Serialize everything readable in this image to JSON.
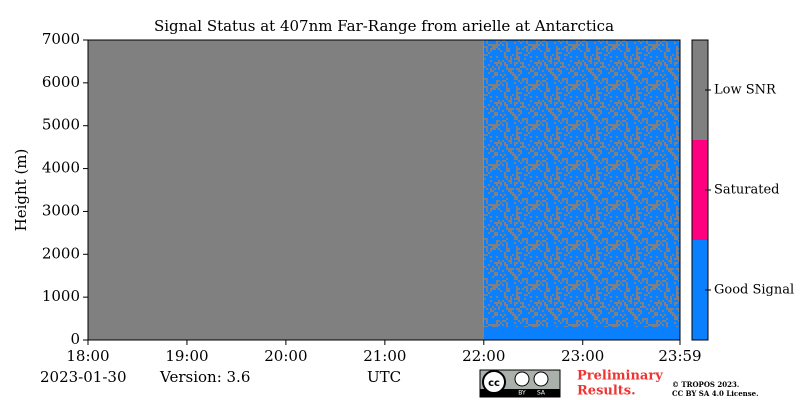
{
  "chart_data": {
    "type": "status",
    "title": "Signal Status at 407nm Far-Range from arielle at Antarctica",
    "y_label": "Height (m)",
    "x_label": "UTC",
    "date": "2023-01-30",
    "version": "Version: 3.6",
    "xlim": [
      18,
      23.983
    ],
    "xticks": [
      {
        "value": 18,
        "label": "18:00"
      },
      {
        "value": 19,
        "label": "19:00"
      },
      {
        "value": 20,
        "label": "20:00"
      },
      {
        "value": 21,
        "label": "21:00"
      },
      {
        "value": 22,
        "label": "22:00"
      },
      {
        "value": 23,
        "label": "23:00"
      },
      {
        "value": 23.983,
        "label": "23:59"
      }
    ],
    "ylim": [
      0,
      7000
    ],
    "yticks": [
      0,
      1000,
      2000,
      3000,
      4000,
      5000,
      6000,
      7000
    ],
    "classes": [
      {
        "name": "Good Signal",
        "color": "#0a80ff"
      },
      {
        "name": "Saturated",
        "color": "#ff0080"
      },
      {
        "name": "Low SNR",
        "color": "#808080"
      }
    ],
    "regions": [
      {
        "x": [
          18,
          22
        ],
        "y": [
          0,
          7000
        ],
        "classes": [
          2
        ]
      },
      {
        "x": [
          22,
          23.983
        ],
        "y": [
          0,
          7000
        ],
        "classes": [
          0,
          2
        ]
      },
      {
        "x": [
          22,
          23.983
        ],
        "y": [
          0,
          300
        ],
        "classes": [
          0
        ]
      }
    ],
    "preliminary": [
      "Preliminary",
      "Results."
    ],
    "license": [
      "© TROPOS 2023.",
      "CC BY SA 4.0 License."
    ],
    "badge": [
      "cc",
      "BY",
      "SA"
    ]
  }
}
